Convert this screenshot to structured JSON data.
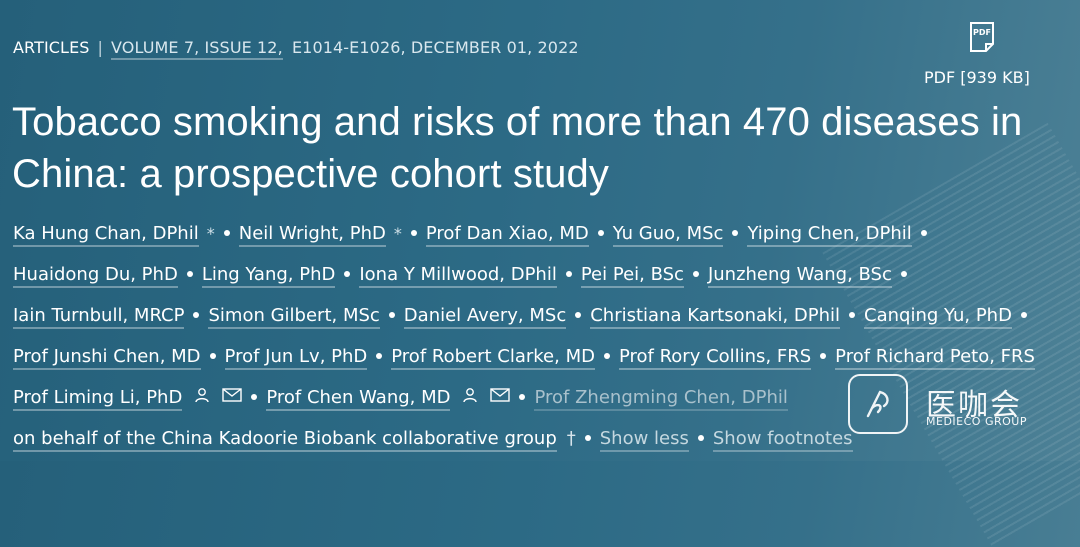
{
  "header": {
    "section": "ARTICLES",
    "separator": "|",
    "volume_issue": "VOLUME 7, ISSUE 12,",
    "pages_date": "E1014-E1026, DECEMBER 01, 2022"
  },
  "pdf": {
    "icon_text": "PDF",
    "label": "PDF [939 KB]"
  },
  "title": "Tobacco smoking and risks of more than 470 diseases in China: a prospective cohort study",
  "authors": {
    "row1": [
      "Ka Hung Chan, DPhil",
      "Neil Wright, PhD",
      "Prof Dan Xiao, MD",
      "Yu Guo, MSc",
      "Yiping Chen, DPhil"
    ],
    "row2": [
      "Huaidong Du, PhD",
      "Ling Yang, PhD",
      "Iona Y Millwood, DPhil",
      "Pei Pei, BSc",
      "Junzheng Wang, BSc"
    ],
    "row3": [
      "Iain Turnbull, MRCP",
      "Simon Gilbert, MSc",
      "Daniel Avery, MSc",
      "Christiana Kartsonaki, DPhil",
      "Canqing Yu, PhD"
    ],
    "row4": [
      "Prof Junshi Chen, MD",
      "Prof Jun Lv, PhD",
      "Prof Robert Clarke, MD",
      "Prof Rory Collins, FRS",
      "Prof Richard Peto, FRS"
    ],
    "row5": [
      "Prof Liming Li, PhD",
      "Prof Chen Wang, MD",
      "Prof Zhengming Chen, DPhil"
    ],
    "asterisk": "*",
    "group": "on behalf of the China Kadoorie Biobank collaborative group",
    "dagger": "†"
  },
  "actions": {
    "show_less": "Show less",
    "show_footnotes": "Show footnotes"
  },
  "watermark": {
    "cn": "医咖会",
    "en": "MEDIECO GROUP"
  }
}
